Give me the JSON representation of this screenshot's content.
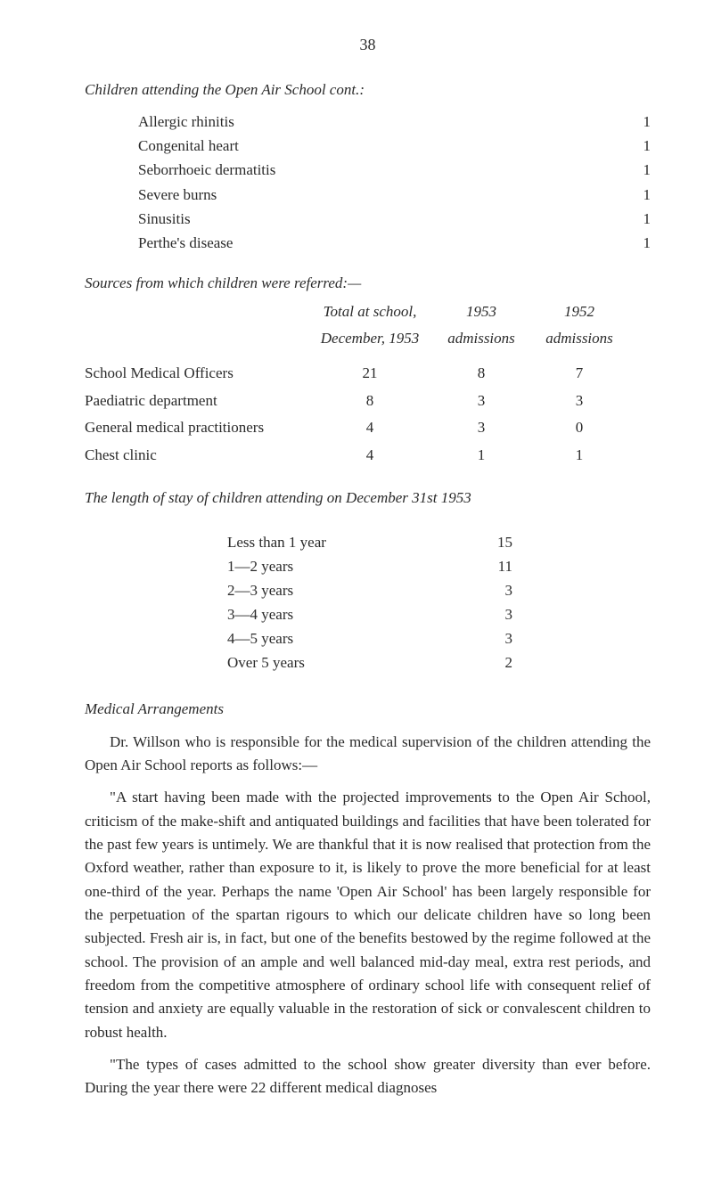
{
  "pageNumber": "38",
  "section1": {
    "title": "Children attending the Open Air School cont.:",
    "items": [
      {
        "label": "Allergic rhinitis",
        "value": "1"
      },
      {
        "label": "Congenital heart",
        "value": "1"
      },
      {
        "label": "Seborrhoeic dermatitis",
        "value": "1"
      },
      {
        "label": "Severe burns",
        "value": "1"
      },
      {
        "label": "Sinusitis",
        "value": "1"
      },
      {
        "label": "Perthe's disease",
        "value": "1"
      }
    ]
  },
  "section2": {
    "title": "Sources from which children were referred:—",
    "header": {
      "col1": "Total at school,",
      "col2": "1953",
      "col3": "1952",
      "sub1": "December, 1953",
      "sub2": "admissions",
      "sub3": "admissions"
    },
    "rows": [
      {
        "label": "School Medical Officers",
        "c1": "21",
        "c2": "8",
        "c3": "7"
      },
      {
        "label": "Paediatric department",
        "c1": "8",
        "c2": "3",
        "c3": "3"
      },
      {
        "label": "General medical practitioners",
        "c1": "4",
        "c2": "3",
        "c3": "0"
      },
      {
        "label": "Chest clinic",
        "c1": "4",
        "c2": "1",
        "c3": "1"
      }
    ]
  },
  "section3": {
    "title": "The length of stay of children attending on December 31st 1953",
    "rows": [
      {
        "label": "Less than 1 year",
        "value": "15"
      },
      {
        "label": "1—2 years",
        "value": "11"
      },
      {
        "label": "2—3 years",
        "value": "3"
      },
      {
        "label": "3—4 years",
        "value": "3"
      },
      {
        "label": "4—5 years",
        "value": "3"
      },
      {
        "label": "Over 5 years",
        "value": "2"
      }
    ]
  },
  "section4": {
    "title": "Medical Arrangements",
    "para1": "Dr. Willson who is responsible for the medical supervision of the children attending the Open Air School reports as follows:—",
    "para2": "\"A start having been made with the projected improvements to the Open Air School, criticism of the make-shift and antiquated buildings and facilities that have been tolerated for the past few years is untimely. We are thankful that it is now realised that protection from the Oxford weather, rather than exposure to it, is likely to prove the more beneficial for at least one-third of the year. Perhaps the name 'Open Air School' has been largely responsible for the perpetuation of the spartan rigours to which our delicate children have so long been subjected. Fresh air is, in fact, but one of the benefits bestowed by the regime followed at the school. The provision of an ample and well balanced mid-day meal, extra rest periods, and freedom from the competitive atmosphere of ordinary school life with consequent relief of tension and anxiety are equally valuable in the restoration of sick or convalescent children to robust health.",
    "para3": "\"The types of cases admitted to the school show greater diversity than ever before. During the year there were 22 different medical diagnoses"
  }
}
